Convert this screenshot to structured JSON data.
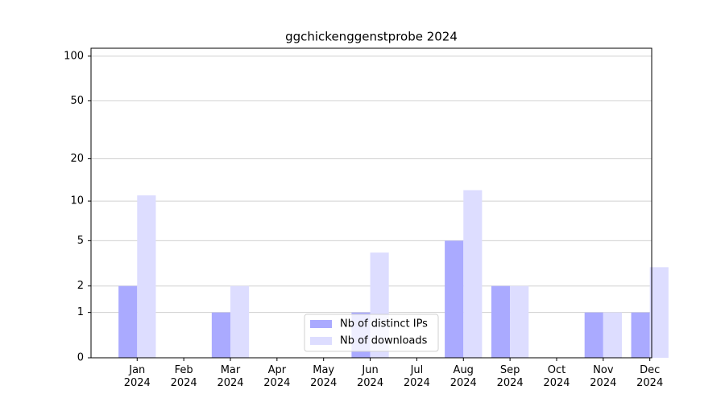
{
  "chart_data": {
    "type": "bar",
    "title": "ggchickenggenstprobe 2024",
    "categories": [
      "Jan\n2024",
      "Feb\n2024",
      "Mar\n2024",
      "Apr\n2024",
      "May\n2024",
      "Jun\n2024",
      "Jul\n2024",
      "Aug\n2024",
      "Sep\n2024",
      "Oct\n2024",
      "Nov\n2024",
      "Dec\n2024"
    ],
    "series": [
      {
        "name": "Nb of distinct IPs",
        "color": "#aaaaff",
        "values": [
          2,
          0,
          1,
          0,
          0,
          1,
          0,
          5,
          2,
          0,
          1,
          1
        ]
      },
      {
        "name": "Nb of downloads",
        "color": "#ddddff",
        "values": [
          11,
          0,
          2,
          0,
          0,
          4,
          0,
          12,
          2,
          0,
          1,
          3
        ]
      }
    ],
    "yscale": "log1p",
    "ylim": [
      0,
      113
    ],
    "yticks": [
      0,
      1,
      2,
      5,
      10,
      20,
      50,
      100
    ],
    "grid": true,
    "legend": "lower center"
  }
}
